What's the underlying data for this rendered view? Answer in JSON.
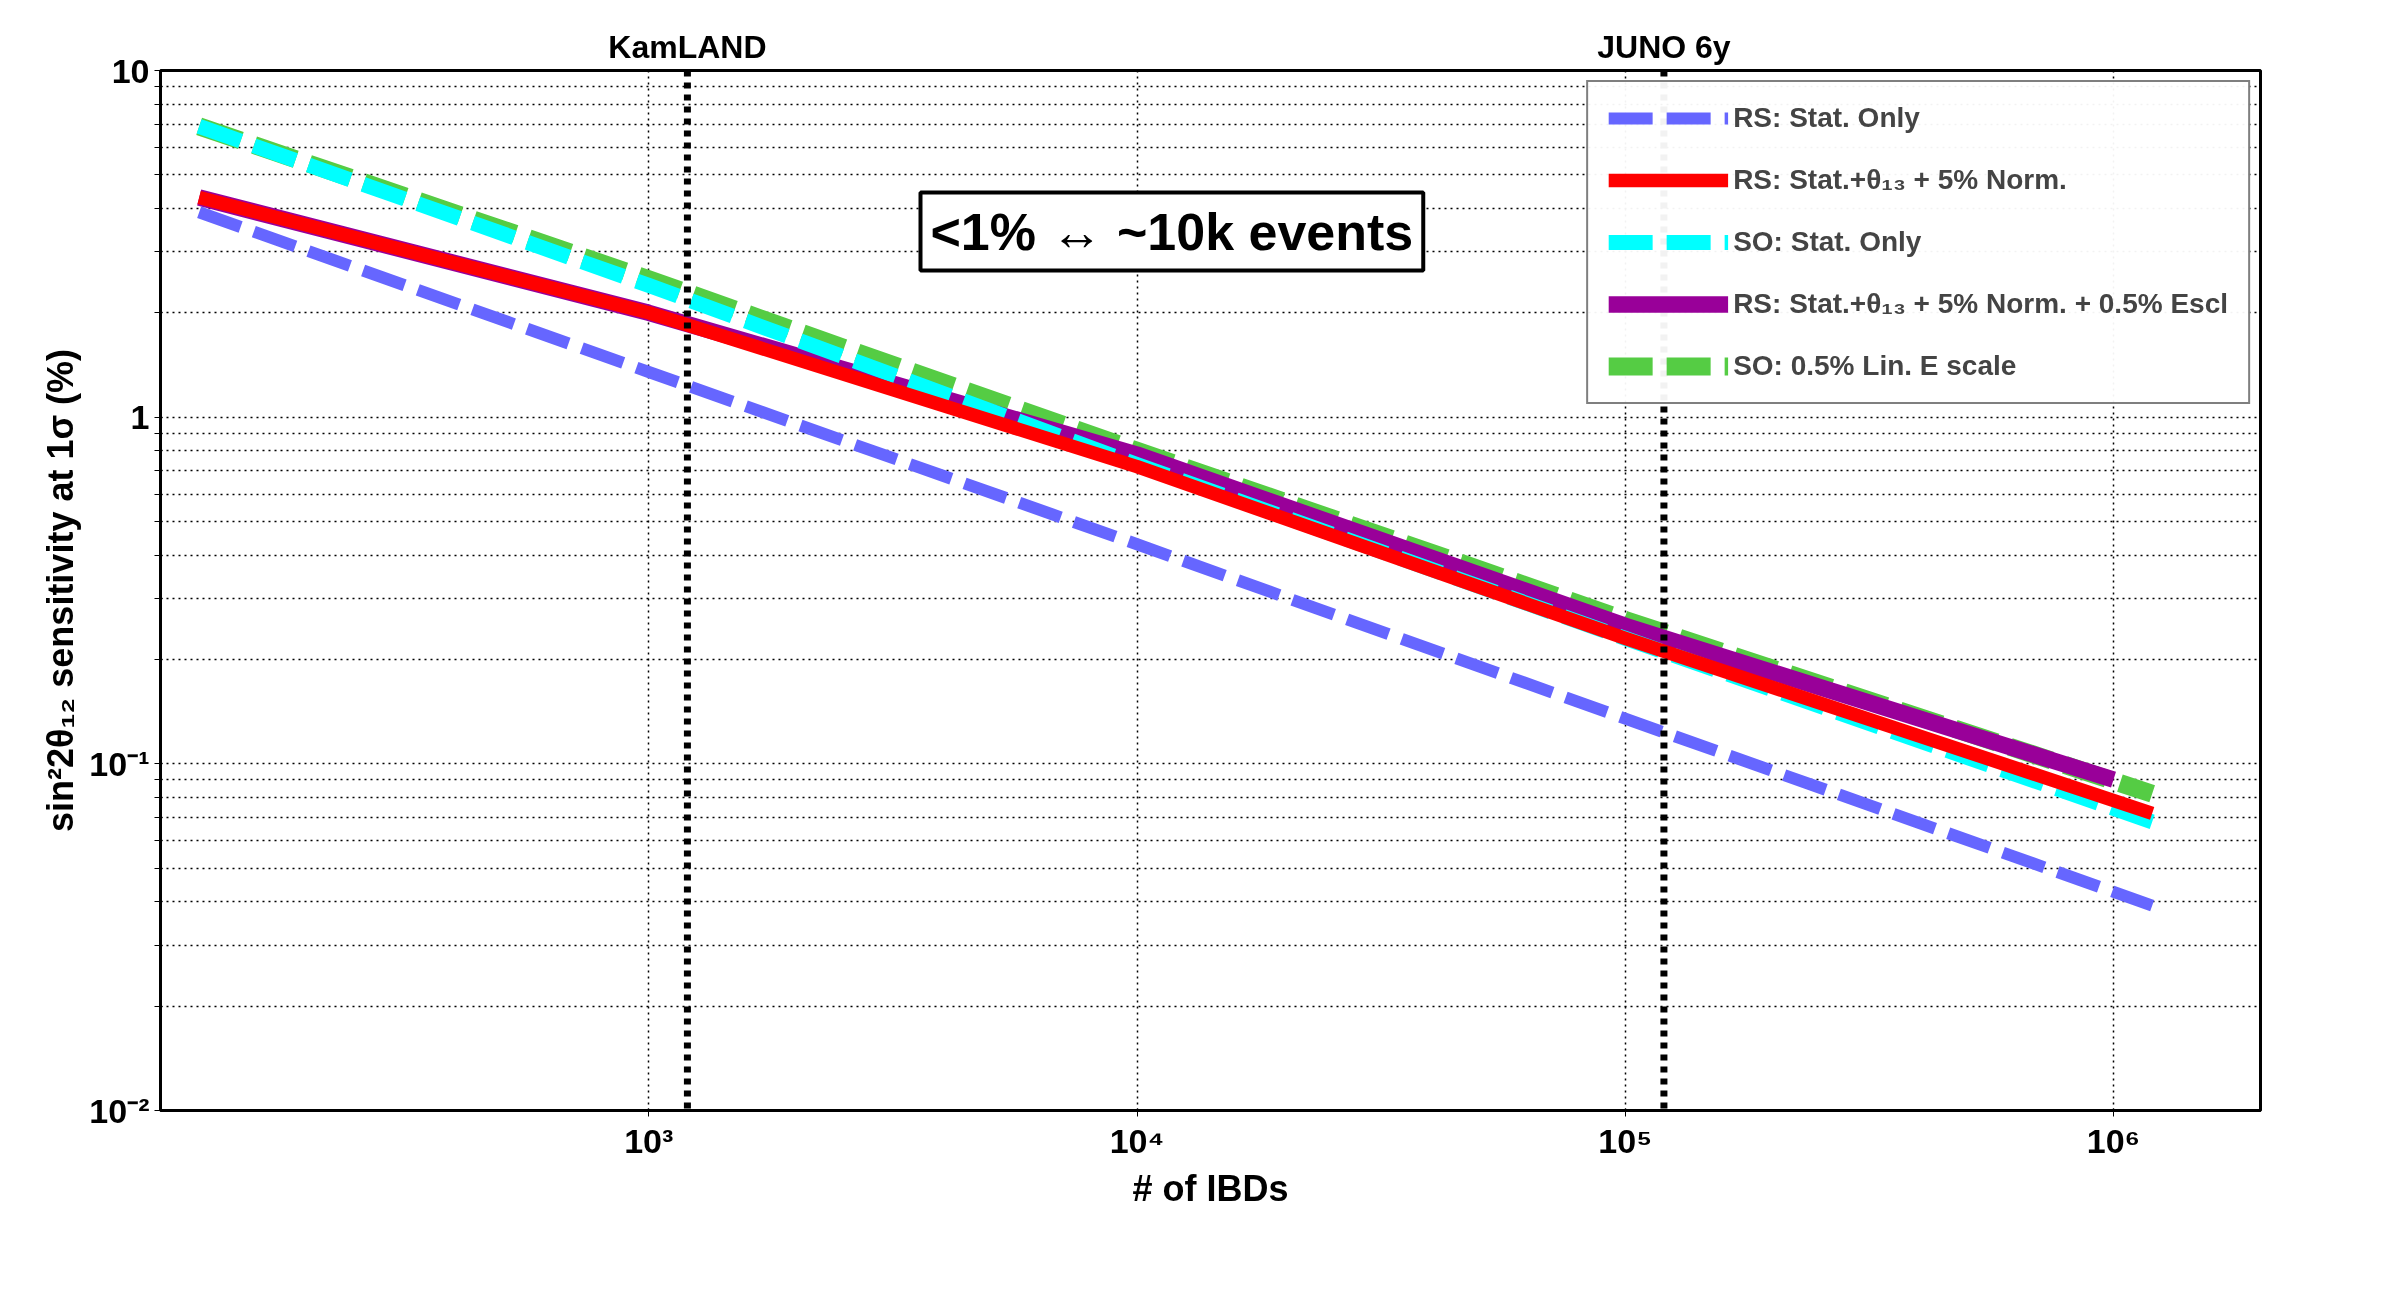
{
  "chart_data": {
    "type": "line",
    "xlabel": "# of IBDs",
    "ylabel": "sin²2θ₁₂ sensitivity at 1σ (%)",
    "log": "xy",
    "grid": true,
    "legend": "top right",
    "xlim": [
      100,
      2000000
    ],
    "ylim": [
      0.01,
      10
    ],
    "xticks": [
      {
        "value": 1000,
        "label": "10³"
      },
      {
        "value": 10000,
        "label": "10⁴"
      },
      {
        "value": 100000,
        "label": "10⁵"
      },
      {
        "value": 1000000,
        "label": "10⁶"
      }
    ],
    "yticks": [
      {
        "value": 0.01,
        "label": "10⁻²"
      },
      {
        "value": 0.02,
        "label": null
      },
      {
        "value": 0.03,
        "label": null
      },
      {
        "value": 0.04,
        "label": null
      },
      {
        "value": 0.05,
        "label": null
      },
      {
        "value": 0.06,
        "label": null
      },
      {
        "value": 0.07,
        "label": null
      },
      {
        "value": 0.08,
        "label": null
      },
      {
        "value": 0.09,
        "label": null
      },
      {
        "value": 0.1,
        "label": "10⁻¹"
      },
      {
        "value": 0.2,
        "label": null
      },
      {
        "value": 0.3,
        "label": null
      },
      {
        "value": 0.4,
        "label": null
      },
      {
        "value": 0.5,
        "label": null
      },
      {
        "value": 0.6,
        "label": null
      },
      {
        "value": 0.7,
        "label": null
      },
      {
        "value": 0.8,
        "label": null
      },
      {
        "value": 0.9,
        "label": null
      },
      1,
      {
        "value": 2,
        "label": null
      },
      {
        "value": 3,
        "label": null
      },
      {
        "value": 4,
        "label": null
      },
      {
        "value": 5,
        "label": null
      },
      {
        "value": 6,
        "label": null
      },
      {
        "value": 7,
        "label": null
      },
      {
        "value": 8,
        "label": null
      },
      {
        "value": 9,
        "label": null
      },
      10
    ],
    "x": [
      120,
      1000,
      10000,
      100000,
      1200000
    ],
    "series": [
      {
        "name": "RS: Stat. Only",
        "color": "#6666ff",
        "line_style": "dashed",
        "values": [
          3.9,
          1.35,
          0.43,
          0.135,
          0.039
        ]
      },
      {
        "name": "RS: Stat.+θ₁₃ + 5% Norm.",
        "color": "#ff0000",
        "line_style": "solid",
        "values": [
          4.3,
          2.0,
          0.72,
          0.23,
          0.072
        ]
      },
      {
        "name": "SO: Stat. Only",
        "color": "#00ffff",
        "line_style": "dashed",
        "values": [
          6.9,
          2.4,
          0.73,
          0.23,
          0.068
        ]
      },
      {
        "name": "RS: Stat.+θ₁₃ + 5% Norm. + 0.5% Escl",
        "color": "#990099",
        "line_style": "solid",
        "x": [
          120,
          1000,
          10000,
          100000,
          1000000
        ],
        "values": [
          4.3,
          2.0,
          0.78,
          0.25,
          0.09
        ]
      },
      {
        "name": "SO: 0.5% Lin. E scale",
        "color": "#55cc44",
        "line_style": "dashed",
        "values": [
          6.9,
          2.5,
          0.8,
          0.26,
          0.082
        ]
      }
    ],
    "ref_lines": [
      {
        "axis": "x",
        "value": 1200,
        "label": "KamLAND",
        "color": "#000000",
        "line_style": "dotted"
      },
      {
        "axis": "x",
        "value": 120000,
        "label": "JUNO 6y",
        "color": "#000000",
        "line_style": "dotted"
      }
    ],
    "annotations": [
      "<1% ↔ ~10k events"
    ]
  }
}
